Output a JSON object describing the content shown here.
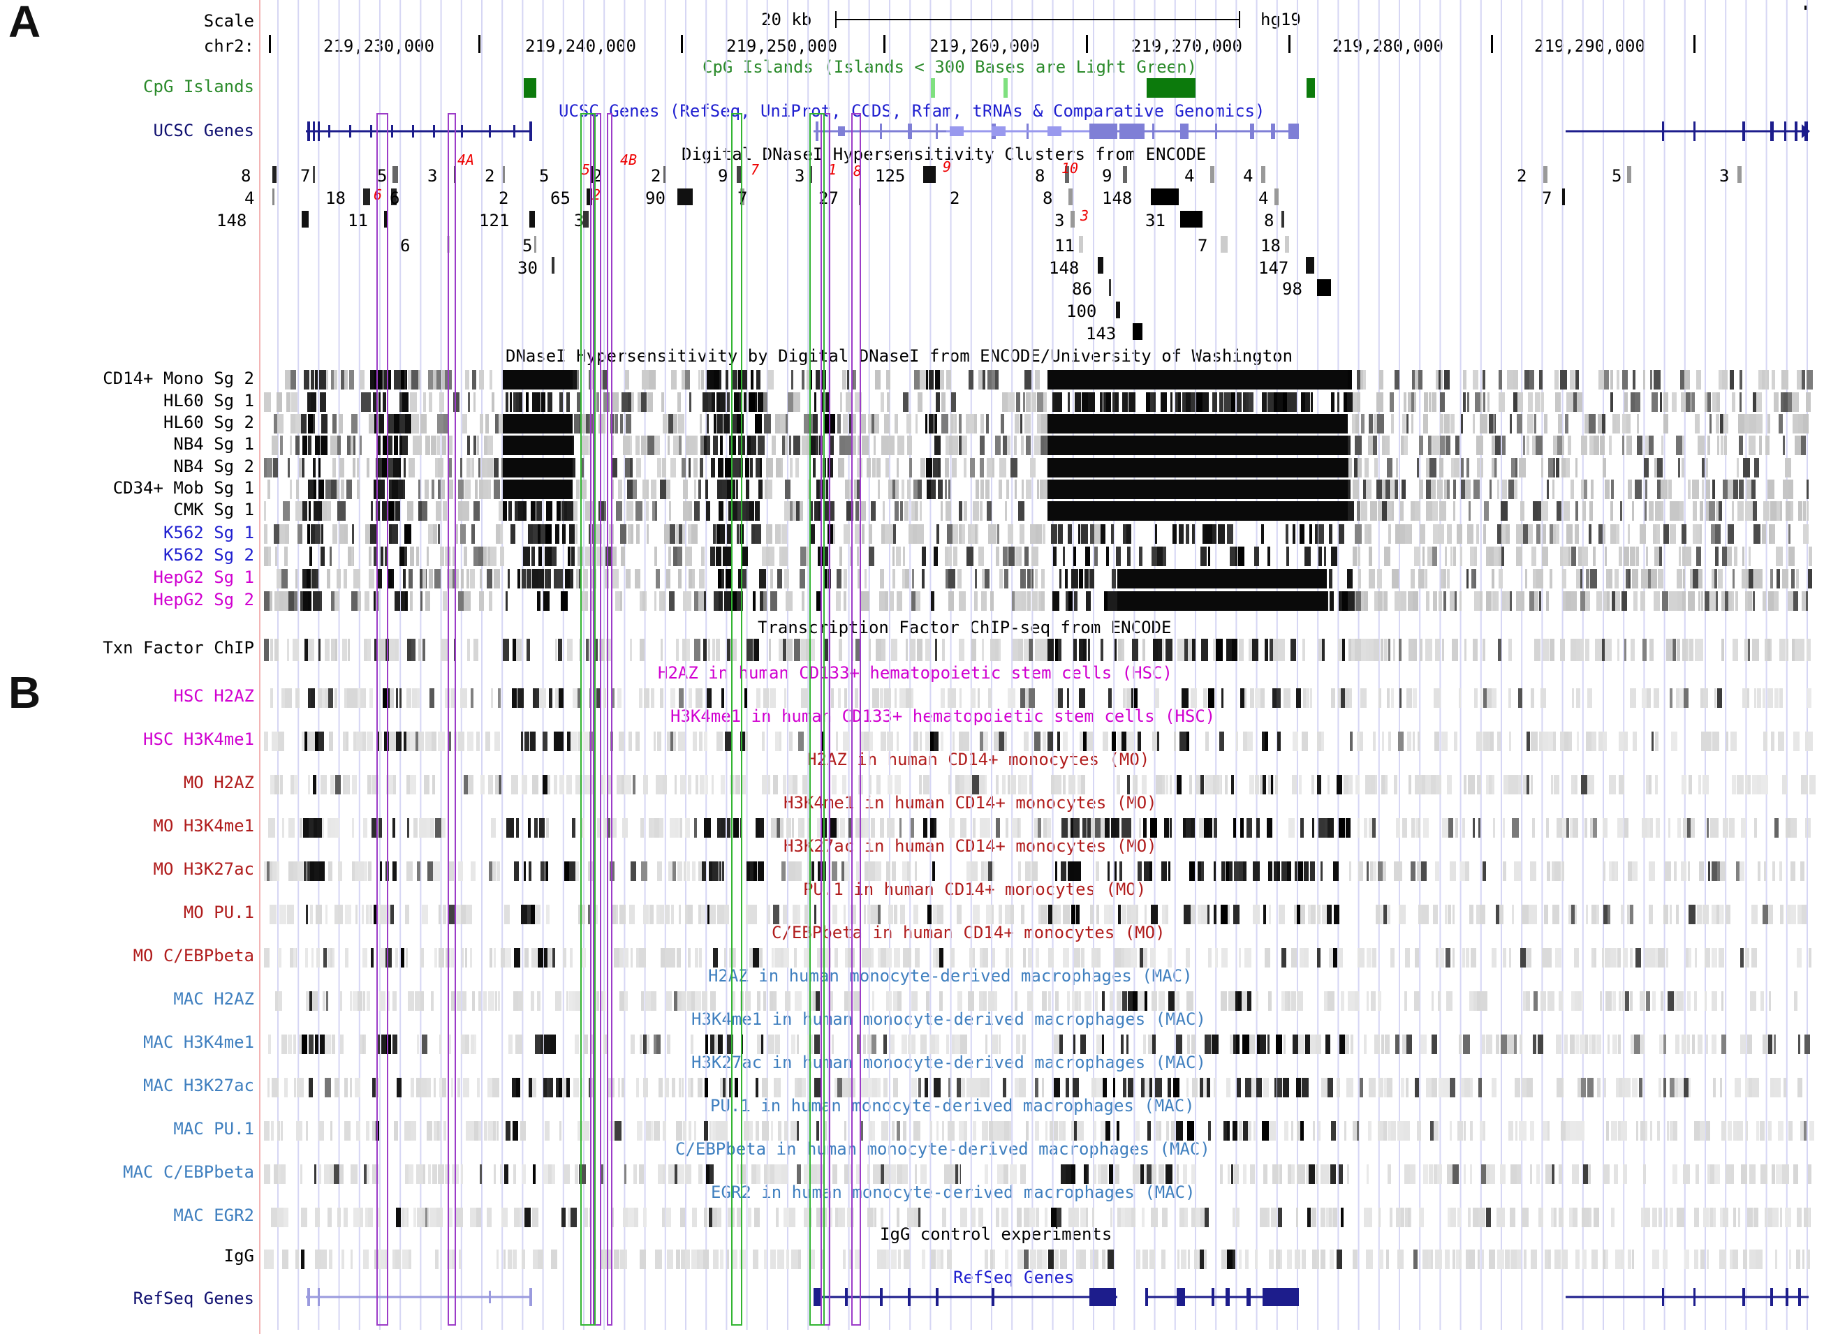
{
  "figure": {
    "panel_a": "A",
    "panel_b": "B"
  },
  "ruler": {
    "scale_label": "Scale",
    "scale_bar": "20 kb",
    "assembly": "hg19",
    "chrom_label": "chr2:",
    "positions": [
      "219,230,000",
      "219,240,000",
      "219,250,000",
      "219,260,000",
      "219,270,000",
      "219,280,000",
      "219,290,000"
    ]
  },
  "colors": {
    "green": "#2a8a2a",
    "cpg_dark": "#0c7a0c",
    "cpg_light": "#7fe07f",
    "navy": "#101070",
    "gene_blue": "#1d1d8c",
    "gene_light": "#7f7fd6",
    "blue": "#2020d0",
    "magenta": "#d000d0",
    "crimson": "#b01c1c",
    "steel": "#3f7fbf",
    "highlight_violet": "#9c3cc8",
    "highlight_green": "#33b533",
    "guide": "#d6d6f4",
    "red_label": "#ee0000"
  },
  "tracks": {
    "cpg": {
      "label": "CpG Islands",
      "title": "CpG Islands (Islands < 300 Bases are Light Green)"
    },
    "ucsc": {
      "label": "UCSC Genes",
      "title": "UCSC Genes (RefSeq, UniProt, CCDS, Rfam, tRNAs & Comparative Genomics)"
    },
    "clusters": {
      "title": "Digital DNaseI Hypersensitivity Clusters from ENCODE",
      "row1": [
        "8",
        "7",
        "5",
        "3",
        "2",
        "5",
        "2",
        "2",
        "9",
        "3",
        "125",
        "8",
        "9",
        "4",
        "4",
        "2",
        "5",
        "3"
      ],
      "row2": [
        "4",
        "18",
        "6",
        "2",
        "65",
        "90",
        "7",
        "27",
        "2",
        "8",
        "148",
        "4",
        "7"
      ],
      "row3": [
        "148",
        "11",
        "121",
        "3",
        "3",
        "31",
        "8"
      ],
      "extra": [
        "6",
        "5",
        "30",
        "11",
        "18",
        "7",
        "148",
        "147",
        "86",
        "98",
        "100",
        "143"
      ],
      "red_marks": [
        "4A",
        "4B",
        "5",
        "6",
        "2",
        "7",
        "1",
        "8",
        "9",
        "10",
        "3"
      ]
    },
    "dnase": {
      "title": "DNaseI Hypersensitivity by Digital DNaseI from ENCODE/University of Washington",
      "rows": [
        {
          "label": "CD14+ Mono Sg 2"
        },
        {
          "label": "HL60 Sg 1"
        },
        {
          "label": "HL60 Sg 2"
        },
        {
          "label": "NB4 Sg 1"
        },
        {
          "label": "NB4 Sg 2"
        },
        {
          "label": "CD34+ Mob Sg 1"
        },
        {
          "label": "CMK Sg 1"
        },
        {
          "label": "K562 Sg 1"
        },
        {
          "label": "K562 Sg 2"
        },
        {
          "label": "HepG2 Sg 1"
        },
        {
          "label": "HepG2 Sg 2"
        }
      ]
    },
    "txn": {
      "label": "Txn Factor ChIP",
      "title": "Transcription Factor ChIP-seq from ENCODE"
    },
    "chip": [
      {
        "label": "HSC H2AZ",
        "title": "H2AZ in human CD133+ hematopoietic stem cells (HSC)"
      },
      {
        "label": "HSC H3K4me1",
        "title": "H3K4me1 in human CD133+ hematopoietic stem cells (HSC)"
      },
      {
        "label": "MO H2AZ",
        "title": "H2AZ in human CD14+ monocytes (MO)"
      },
      {
        "label": "MO H3K4me1",
        "title": "H3K4me1 in human CD14+ monocytes (MO)"
      },
      {
        "label": "MO H3K27ac",
        "title": "H3K27ac in human CD14+ monocytes (MO)"
      },
      {
        "label": "MO PU.1",
        "title": "PU.1 in human CD14+ monocytes (MO)"
      },
      {
        "label": "MO C/EBPbeta",
        "title": "C/EBPbeta in human CD14+ monocytes (MO)"
      },
      {
        "label": "MAC H2AZ",
        "title": "H2AZ in human monocyte-derived macrophages (MAC)"
      },
      {
        "label": "MAC H3K4me1",
        "title": "H3K4me1 in human monocyte-derived macrophages (MAC)"
      },
      {
        "label": "MAC H3K27ac",
        "title": "H3K27ac in human monocyte-derived macrophages (MAC)"
      },
      {
        "label": "MAC PU.1",
        "title": "PU.1 in human monocyte-derived macrophages (MAC)"
      },
      {
        "label": "MAC C/EBPbeta",
        "title": "C/EBPbeta in human monocyte-derived macrophages (MAC)"
      },
      {
        "label": "MAC EGR2",
        "title": "EGR2 in human monocyte-derived macrophages (MAC)"
      }
    ],
    "igg": {
      "label": "IgG",
      "title": "IgG control experiments"
    },
    "refseq": {
      "label": "RefSeq Genes",
      "title": "RefSeq Genes"
    }
  }
}
